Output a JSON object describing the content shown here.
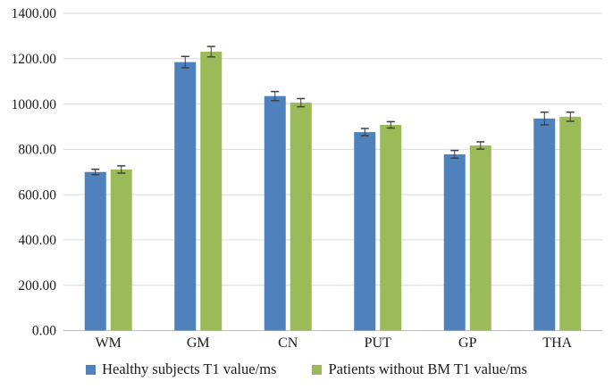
{
  "chart_data": {
    "type": "bar",
    "title": "",
    "xlabel": "",
    "ylabel": "",
    "categories": [
      "WM",
      "GM",
      "CN",
      "PUT",
      "GP",
      "THA"
    ],
    "series": [
      {
        "name": "Healthy subjects T1 value/ms",
        "color": "#4F81BD",
        "values": [
          700,
          1185,
          1035,
          876,
          778,
          936
        ],
        "errors": [
          12,
          25,
          20,
          16,
          17,
          28
        ]
      },
      {
        "name": "Patients without BM T1 value/ms",
        "color": "#9BBB59",
        "values": [
          711,
          1231,
          1006,
          908,
          817,
          944
        ],
        "errors": [
          16,
          23,
          18,
          14,
          16,
          20
        ]
      }
    ],
    "ylim": [
      0,
      1400
    ],
    "y_tick_step": 200,
    "y_tick_labels": [
      "0.00",
      "200.00",
      "400.00",
      "600.00",
      "800.00",
      "1000.00",
      "1200.00",
      "1400.00"
    ],
    "grid": true,
    "error_bars": true,
    "legend_position": "bottom"
  },
  "colors": {
    "series_blue": "#4F81BD",
    "series_green": "#9BBB59",
    "gridline": "#D9D9D9",
    "axis_line": "#BFBFBF",
    "error_bar": "#3F3F3F",
    "text": "#1A1A1A",
    "background": "#FFFFFF"
  }
}
